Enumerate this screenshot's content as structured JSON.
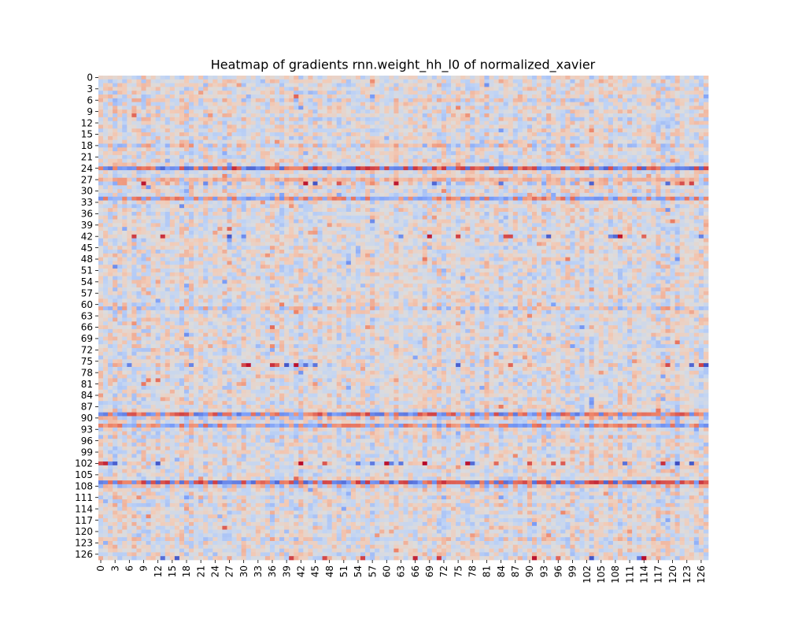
{
  "chart_data": {
    "type": "heatmap",
    "title": "Heatmap of gradients rnn.weight_hh_l0 of normalized_xavier",
    "xlabel": "",
    "ylabel": "",
    "colormap": "coolwarm",
    "colors": {
      "neutral": "#dddcdc",
      "light_blue": "#c7d6f1",
      "blue": "#7c9ff1",
      "dark_blue": "#5470de",
      "light_red": "#f3c8b0",
      "red": "#ef8a6a",
      "dark_red": "#b40426"
    },
    "n_rows": 128,
    "n_cols": 128,
    "x_tick_labels": [
      "0",
      "3",
      "6",
      "9",
      "12",
      "15",
      "18",
      "21",
      "24",
      "27",
      "30",
      "33",
      "36",
      "39",
      "42",
      "45",
      "48",
      "51",
      "54",
      "57",
      "60",
      "63",
      "66",
      "69",
      "72",
      "75",
      "78",
      "81",
      "84",
      "87",
      "90",
      "93",
      "96",
      "99",
      "102",
      "105",
      "108",
      "111",
      "114",
      "117",
      "120",
      "123",
      "126"
    ],
    "y_tick_labels": [
      "0",
      "3",
      "6",
      "9",
      "12",
      "15",
      "18",
      "21",
      "24",
      "27",
      "30",
      "33",
      "36",
      "39",
      "42",
      "45",
      "48",
      "51",
      "54",
      "57",
      "60",
      "63",
      "66",
      "69",
      "72",
      "75",
      "78",
      "81",
      "84",
      "87",
      "90",
      "93",
      "96",
      "99",
      "102",
      "105",
      "108",
      "111",
      "114",
      "117",
      "120",
      "123",
      "126"
    ],
    "value_range": [
      -1,
      1
    ],
    "row_patterns": [
      {
        "row": 6,
        "amp": 0.35,
        "kind": "mixed"
      },
      {
        "row": 11,
        "amp": 0.3,
        "kind": "mixed"
      },
      {
        "row": 18,
        "amp": 0.45,
        "kind": "mixed"
      },
      {
        "row": 24,
        "amp": 0.85,
        "kind": "strong-mixed"
      },
      {
        "row": 27,
        "amp": 0.4,
        "kind": "red"
      },
      {
        "row": 28,
        "amp": 0.8,
        "kind": "sparse-dark"
      },
      {
        "row": 32,
        "amp": 0.6,
        "kind": "strong-mixed"
      },
      {
        "row": 42,
        "amp": 0.55,
        "kind": "sparse-dark"
      },
      {
        "row": 61,
        "amp": 0.45,
        "kind": "mixed"
      },
      {
        "row": 76,
        "amp": 0.6,
        "kind": "sparse-dark"
      },
      {
        "row": 89,
        "amp": 0.75,
        "kind": "strong-mixed"
      },
      {
        "row": 90,
        "amp": 0.45,
        "kind": "mixed"
      },
      {
        "row": 92,
        "amp": 0.6,
        "kind": "strong-mixed"
      },
      {
        "row": 95,
        "amp": 0.35,
        "kind": "mixed"
      },
      {
        "row": 102,
        "amp": 0.55,
        "kind": "sparse-dark"
      },
      {
        "row": 107,
        "amp": 0.85,
        "kind": "strong-mixed"
      },
      {
        "row": 108,
        "amp": 0.45,
        "kind": "mixed"
      },
      {
        "row": 113,
        "amp": 0.3,
        "kind": "mixed"
      },
      {
        "row": 122,
        "amp": 0.35,
        "kind": "mixed"
      },
      {
        "row": 127,
        "amp": 0.6,
        "kind": "sparse-dark"
      }
    ],
    "colorbar": false,
    "grid": false,
    "legend": "none"
  }
}
